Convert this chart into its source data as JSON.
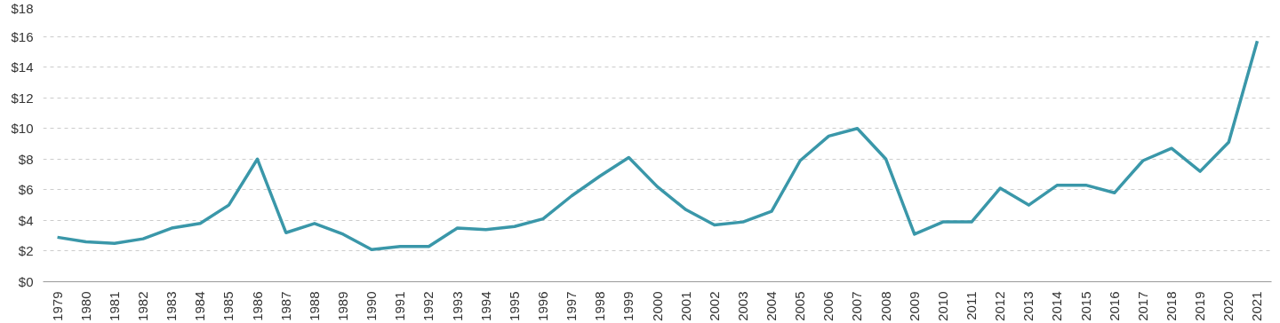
{
  "chart_data": {
    "type": "line",
    "categories": [
      "1979",
      "1980",
      "1981",
      "1982",
      "1983",
      "1984",
      "1985",
      "1986",
      "1987",
      "1988",
      "1989",
      "1990",
      "1991",
      "1992",
      "1993",
      "1994",
      "1995",
      "1996",
      "1997",
      "1998",
      "1999",
      "2000",
      "2001",
      "2002",
      "2003",
      "2004",
      "2005",
      "2006",
      "2007",
      "2008",
      "2009",
      "2010",
      "2011",
      "2012",
      "2013",
      "2014",
      "2015",
      "2016",
      "2017",
      "2018",
      "2019",
      "2020",
      "2021"
    ],
    "series": [
      {
        "color": "#3a97a9",
        "values": [
          2.9,
          2.6,
          2.5,
          2.8,
          3.5,
          3.8,
          5.0,
          8.0,
          3.2,
          3.8,
          3.1,
          2.1,
          2.3,
          2.3,
          3.5,
          3.4,
          3.6,
          4.1,
          5.6,
          6.9,
          8.1,
          6.2,
          4.7,
          3.7,
          3.9,
          4.6,
          7.9,
          9.5,
          10.0,
          8.0,
          3.1,
          3.9,
          3.9,
          6.1,
          5.0,
          6.3,
          6.3,
          5.8,
          7.9,
          8.7,
          7.2,
          9.1,
          15.7
        ]
      }
    ],
    "ylim": [
      0,
      18
    ],
    "yticks": [
      {
        "value": 0,
        "label": "$0"
      },
      {
        "value": 2,
        "label": "$2"
      },
      {
        "value": 4,
        "label": "$4"
      },
      {
        "value": 6,
        "label": "$6"
      },
      {
        "value": 8,
        "label": "$8"
      },
      {
        "value": 10,
        "label": "$10"
      },
      {
        "value": 12,
        "label": "$12"
      },
      {
        "value": 14,
        "label": "$14"
      },
      {
        "value": 16,
        "label": "$16"
      },
      {
        "value": 18,
        "label": "$18"
      }
    ],
    "grid": "y",
    "line_style": "solid",
    "marker": "none"
  }
}
